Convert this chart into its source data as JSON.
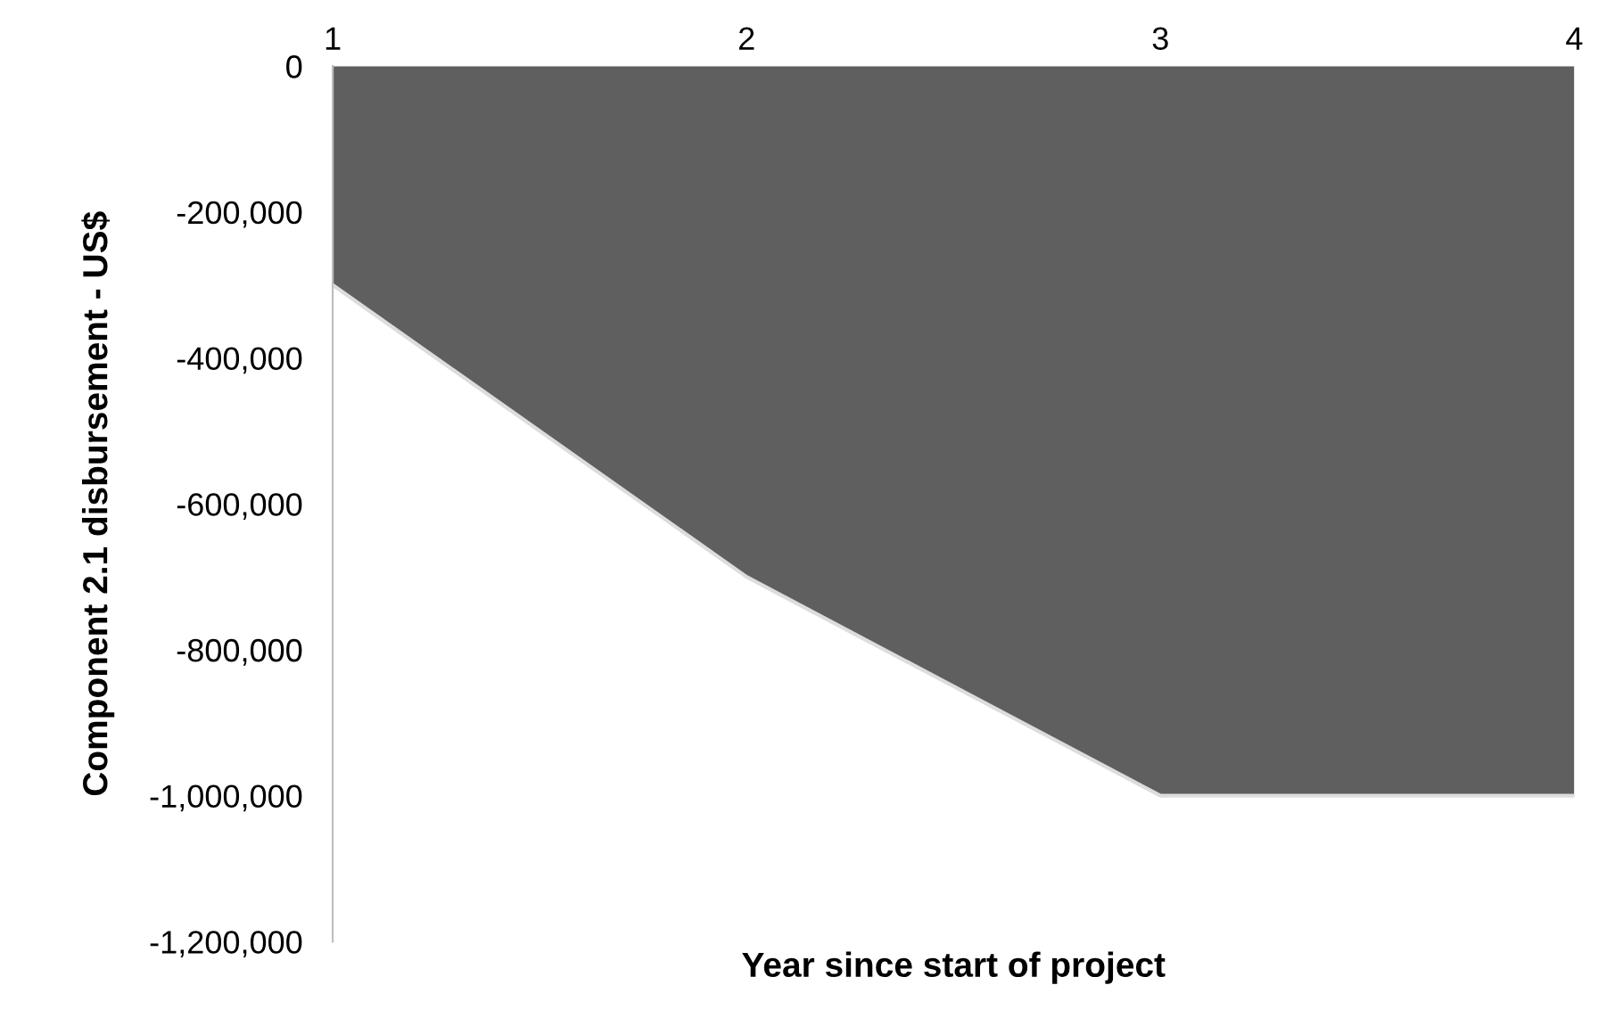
{
  "chart_data": {
    "type": "area",
    "categories": [
      "1",
      "2",
      "3",
      "4"
    ],
    "series": [
      {
        "color": "#5f5f5f",
        "values": [
          -300000,
          -700000,
          -1000000,
          -1000000
        ]
      }
    ],
    "xlabel": "Year since start of project",
    "ylabel": "Component 2.1 disbursement - US$",
    "ylim": [
      -1200000,
      0
    ],
    "yticks": [
      {
        "value": -1200000,
        "label": "-1,200,000"
      },
      {
        "value": -1000000,
        "label": "-1,000,000"
      },
      {
        "value": -800000,
        "label": "-800,000"
      },
      {
        "value": -600000,
        "label": "-600,000"
      },
      {
        "value": -400000,
        "label": "-400,000"
      },
      {
        "value": -200000,
        "label": "-200,000"
      },
      0
    ],
    "grid": false,
    "legend": false
  }
}
